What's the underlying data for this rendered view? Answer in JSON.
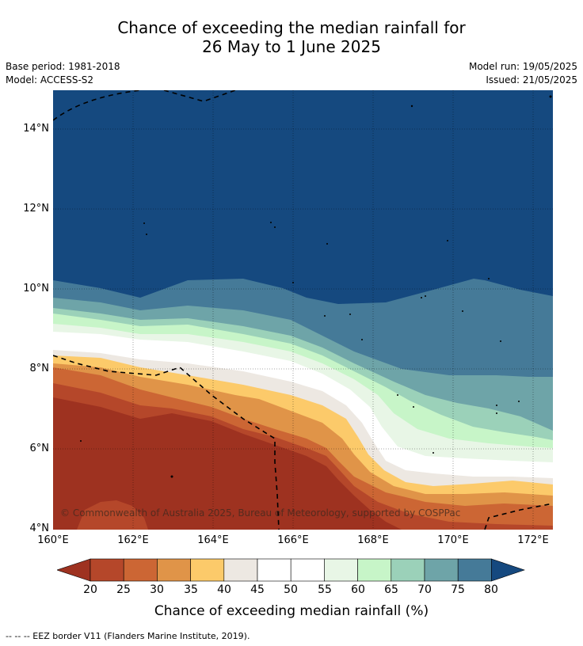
{
  "title_line1": "Chance of exceeding the median rainfall for",
  "title_line2": "26 May to 1 June 2025",
  "base_period": "Base period: 1981-2018",
  "model": "Model: ACCESS-S2",
  "model_run": "Model run: 19/05/2025",
  "issued": "Issued: 21/05/2025",
  "lat_labels": [
    "14°N",
    "12°N",
    "10°N",
    "8°N",
    "6°N",
    "4°N"
  ],
  "lon_labels": [
    "160°E",
    "162°E",
    "164°E",
    "166°E",
    "168°E",
    "170°E",
    "172°E"
  ],
  "colorbar": {
    "ticks": [
      "20",
      "25",
      "30",
      "35",
      "40",
      "45",
      "50",
      "55",
      "60",
      "65",
      "70",
      "75",
      "80"
    ],
    "colors": [
      "#9e3220",
      "#b5472a",
      "#cc6634",
      "#e09448",
      "#fcca6a",
      "#ede8e2",
      "#ffffff",
      "#ffffff",
      "#e8f6e6",
      "#c7f5c8",
      "#9bd1b9",
      "#6ea4a8",
      "#457a98",
      "#15497f"
    ],
    "label": "Chance of exceeding median rainfall (%)"
  },
  "copyright": "© Commonwealth of Australia 2025, Bureau of Meteorology, supported by COSPPac",
  "footnote": "--  --  -- EEZ border V11 (Flanders Marine Institute, 2019)."
}
